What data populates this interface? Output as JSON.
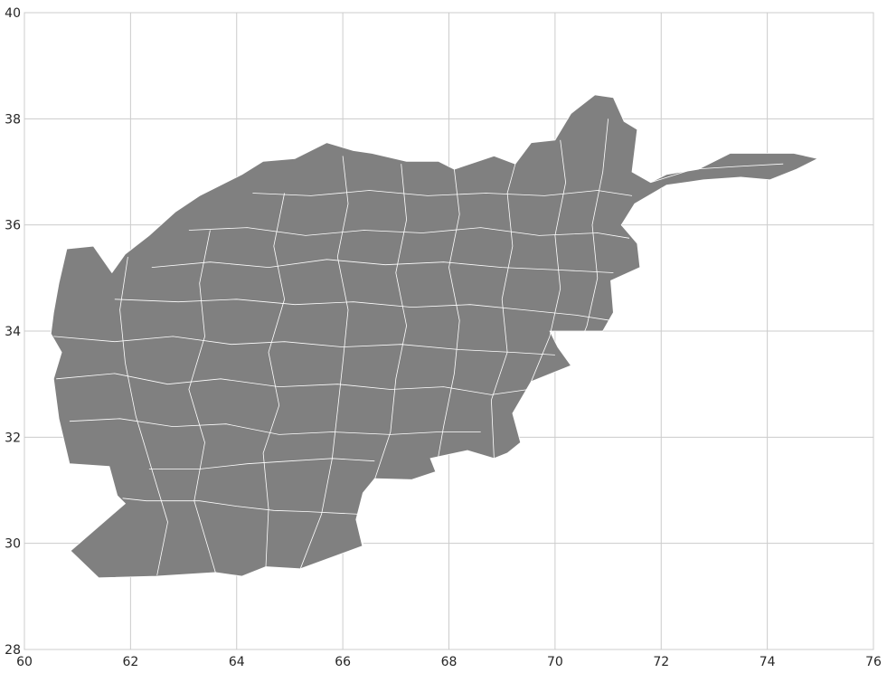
{
  "map": {
    "type": "choropleth-outline",
    "fill_color": "#808080",
    "boundary_color": "#ffffff",
    "grid": true,
    "grid_color": "#cccccc",
    "xlim": [
      60,
      76
    ],
    "ylim": [
      28,
      40
    ],
    "x_ticks": [
      "60",
      "62",
      "64",
      "66",
      "68",
      "70",
      "72",
      "74",
      "76"
    ],
    "y_ticks": [
      "28",
      "30",
      "32",
      "34",
      "36",
      "38",
      "40"
    ]
  }
}
